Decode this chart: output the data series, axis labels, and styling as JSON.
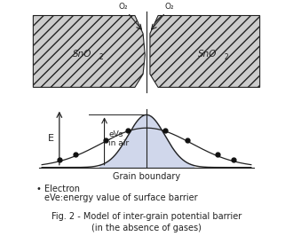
{
  "white_color": "#ffffff",
  "grain_color": "#cccccc",
  "barrier_fill": "#c8d0e8",
  "line_color": "#222222",
  "dot_color": "#111111",
  "title_line1": "Fig. 2 - Model of inter-grain potential barrier",
  "title_line2": "(in the absence of gases)",
  "legend_dot": "• Electron",
  "legend_text": "eVe:energy value of surface barrier",
  "grain_label_left": "SnO",
  "grain_label_right": "SnO",
  "grain_sub": "2",
  "o2_label": "O₂",
  "grain_boundary_label": "Grain boundary",
  "E_label": "E",
  "evs_label": "eVs\nin air"
}
